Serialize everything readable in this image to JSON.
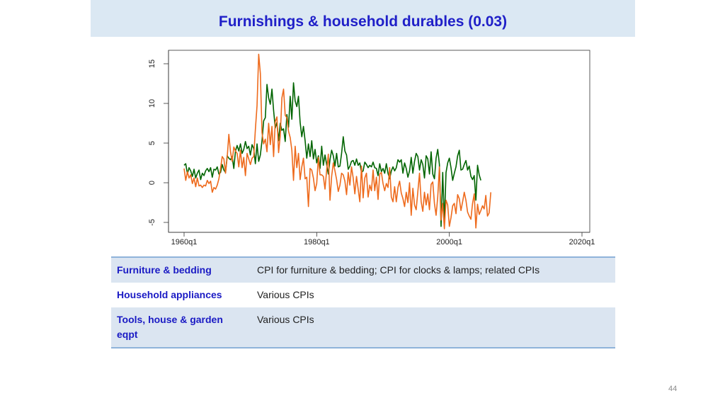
{
  "slide": {
    "title": "Furnishings & household durables (0.03)",
    "page_number": "44"
  },
  "table": {
    "rows": [
      {
        "label": "Furniture & bedding",
        "desc": "CPI for furniture & bedding; CPI for clocks & lamps; related CPIs"
      },
      {
        "label": "Household appliances",
        "desc": "Various CPIs"
      },
      {
        "label": "Tools, house & garden eqpt",
        "desc": "Various CPIs"
      }
    ]
  },
  "chart_data": {
    "type": "line",
    "title": "",
    "xlabel": "",
    "ylabel": "",
    "x_start": 1960.0,
    "x_step": 0.25,
    "xlim": [
      1960,
      2020
    ],
    "ylim": [
      -5,
      15
    ],
    "xticks": [
      1960,
      1980,
      2000,
      2020
    ],
    "xtick_labels": [
      "1960q1",
      "1980q1",
      "2000q1",
      "2020q1"
    ],
    "yticks": [
      -5,
      0,
      5,
      10,
      15
    ],
    "ytick_labels": [
      "-5",
      "0",
      "5",
      "10",
      "15"
    ],
    "grid": false,
    "legend": "none",
    "series": [
      {
        "color": "#006400",
        "values": [
          2.2,
          2.4,
          1.1,
          1.9,
          1.5,
          0.8,
          1.7,
          0.6,
          1.2,
          1.6,
          0.4,
          1.2,
          0.9,
          1.5,
          1.8,
          1.4,
          1.9,
          0.7,
          1.7,
          1.6,
          2.0,
          1.1,
          1.3,
          2.3,
          1.6,
          1.3,
          3.4,
          3.1,
          2.9,
          3.3,
          1.8,
          4.0,
          4.7,
          4.0,
          4.9,
          3.7,
          4.2,
          5.2,
          4.3,
          4.6,
          3.5,
          4.8,
          4.3,
          2.4,
          4.9,
          2.7,
          3.5,
          5.3,
          7.8,
          8.2,
          12.4,
          10.7,
          9.9,
          11.8,
          9.1,
          6.9,
          7.6,
          5.3,
          7.5,
          6.6,
          6.8,
          5.2,
          8.6,
          7.0,
          10.9,
          8.0,
          12.6,
          10.3,
          9.6,
          10.9,
          7.6,
          5.8,
          7.1,
          5.3,
          3.1,
          4.9,
          3.3,
          5.3,
          3.0,
          4.2,
          2.5,
          3.4,
          1.8,
          4.6,
          2.2,
          3.5,
          2.3,
          1.1,
          2.9,
          4.1,
          3.4,
          2.1,
          3.7,
          2.0,
          2.1,
          3.7,
          5.8,
          4.0,
          3.5,
          1.7,
          2.1,
          2.7,
          2.8,
          2.2,
          3.0,
          2.2,
          2.5,
          1.3,
          1.5,
          2.6,
          2.3,
          1.9,
          2.2,
          2.0,
          2.6,
          1.9,
          1.8,
          0.9,
          2.4,
          1.4,
          1.8,
          1.2,
          2.4,
          1.2,
          0.5,
          1.5,
          2.0,
          1.5,
          1.9,
          2.9,
          2.6,
          2.9,
          1.2,
          2.5,
          1.8,
          0.7,
          1.5,
          3.2,
          1.2,
          2.7,
          3.7,
          3.3,
          1.6,
          2.9,
          2.3,
          0.6,
          3.4,
          3.0,
          1.1,
          3.9,
          1.1,
          0.5,
          3.1,
          4.2,
          2.3,
          -5.5,
          1.3,
          -5.0,
          1.3,
          2.5,
          3.1,
          1.9,
          0.3,
          1.2,
          2.0,
          3.4,
          4.1,
          1.6,
          1.7,
          2.3,
          2.8,
          1.6,
          2.1,
          0.8,
          0.4,
          0.9,
          -2.2,
          2.2,
          1.0,
          0.3
        ]
      },
      {
        "color": "#ee6a1c",
        "values": [
          1.8,
          0.3,
          1.4,
          0.6,
          1.0,
          -0.1,
          0.6,
          -0.5,
          0.6,
          -0.4,
          -0.3,
          -0.6,
          -0.3,
          -0.4,
          0.3,
          -0.1,
          0.2,
          -1.2,
          -0.6,
          -0.8,
          -0.3,
          0.5,
          1.8,
          3.3,
          3.0,
          1.2,
          3.2,
          6.1,
          3.9,
          2.7,
          4.5,
          4.0,
          3.7,
          2.0,
          4.1,
          1.9,
          3.2,
          0.9,
          3.7,
          3.0,
          2.3,
          3.1,
          3.3,
          6.7,
          9.7,
          16.2,
          13.8,
          6.3,
          4.9,
          5.5,
          3.9,
          7.5,
          4.8,
          7.1,
          3.3,
          7.7,
          8.3,
          3.8,
          5.9,
          10.7,
          11.8,
          8.5,
          8.2,
          6.5,
          5.7,
          4.1,
          0.3,
          4.6,
          1.9,
          3.7,
          0.4,
          2.0,
          3.1,
          0.5,
          0.7,
          -3.0,
          1.8,
          1.6,
          0.6,
          -1.0,
          -0.1,
          3.2,
          1.0,
          1.0,
          0.8,
          -0.8,
          1.6,
          3.6,
          -2.2,
          0.8,
          2.5,
          1.5,
          0.4,
          -1.1,
          -0.3,
          1.2,
          1.0,
          0.2,
          -1.5,
          1.3,
          -0.3,
          2.0,
          0.6,
          -1.4,
          0.8,
          -0.8,
          -2.4,
          2.1,
          -1.9,
          0.6,
          1.2,
          -1.8,
          -0.3,
          -1.0,
          1.6,
          -1.0,
          0.7,
          -2.1,
          1.1,
          1.3,
          -0.1,
          -1.0,
          -0.1,
          -0.6,
          1.9,
          -1.8,
          -2.4,
          -0.5,
          -2.4,
          -0.6,
          0.2,
          -1.3,
          -2.0,
          -3.0,
          -1.2,
          -2.5,
          0.0,
          -4.1,
          -0.7,
          -2.8,
          -3.4,
          -1.1,
          1.2,
          -2.4,
          -3.6,
          -1.2,
          -2.8,
          -1.4,
          -3.4,
          -0.2,
          0.1,
          -2.6,
          -4.1,
          -1.8,
          2.0,
          -4.7,
          -2.6,
          -5.8,
          -2.2,
          -2.8,
          -5.5,
          -4.4,
          -2.9,
          -2.6,
          -3.9,
          -1.5,
          -2.0,
          -3.5,
          -2.4,
          -1.2,
          -2.2,
          -3.7,
          -4.2,
          -4.6,
          -2.6,
          -1.4,
          -5.7,
          -2.7,
          -4.0,
          -3.5,
          -2.9,
          -3.3,
          -1.6,
          -4.2,
          -3.8,
          -1.2
        ]
      }
    ]
  }
}
